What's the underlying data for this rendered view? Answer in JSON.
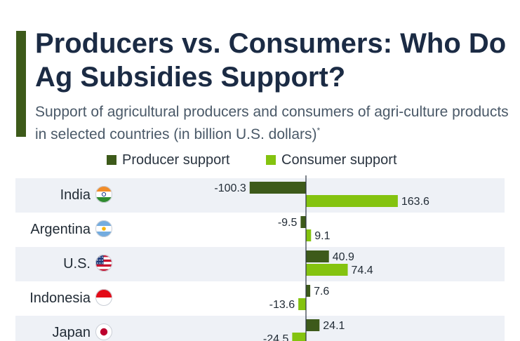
{
  "header": {
    "title": "Producers vs. Consumers: Who Do Ag Subsidies Support?",
    "subtitle": "Support of agricultural producers and consumers of agri-culture products in selected countries (in billion U.S. dollars)",
    "subtitle_mark": "*"
  },
  "colors": {
    "accent": "#3d5a1a",
    "producer": "#3d5a1a",
    "consumer": "#84c30f",
    "row_band": "#eef1f6"
  },
  "chart_data": {
    "type": "bar",
    "orientation": "horizontal",
    "legend_position": "top",
    "categories": [
      "India",
      "Argentina",
      "U.S.",
      "Indonesia",
      "Japan"
    ],
    "flags": [
      "india-flag-icon",
      "argentina-flag-icon",
      "us-flag-icon",
      "indonesia-flag-icon",
      "japan-flag-icon"
    ],
    "series": [
      {
        "name": "Producer support",
        "values": [
          -100.3,
          -9.5,
          40.9,
          7.6,
          24.1
        ],
        "labels": [
          "-100.3",
          "-9.5",
          "40.9",
          "7.6",
          "24.1"
        ]
      },
      {
        "name": "Consumer support",
        "values": [
          163.6,
          9.1,
          74.4,
          -13.6,
          -24.5
        ],
        "labels": [
          "163.6",
          "9.1",
          "74.4",
          "-13.6",
          "-24.5"
        ]
      }
    ]
  }
}
